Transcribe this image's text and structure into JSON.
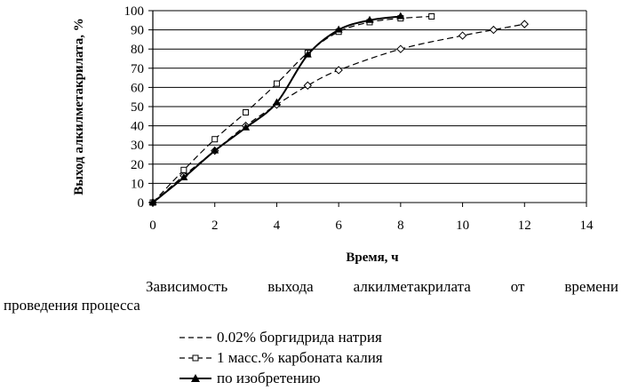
{
  "chart_data": {
    "type": "line",
    "ylabel": "Выход алкилметакрилата, %",
    "xlabel": "Время, ч",
    "xlim": [
      0,
      14
    ],
    "ylim": [
      0,
      100
    ],
    "xticks": [
      "0",
      "2",
      "4",
      "6",
      "8",
      "10",
      "12",
      "14"
    ],
    "yticks": [
      "0",
      "10",
      "20",
      "30",
      "40",
      "50",
      "60",
      "70",
      "80",
      "90",
      "100"
    ],
    "grid": "horizontal",
    "series": [
      {
        "name": "0.02% боргидрида натрия",
        "marker": "diamond",
        "style": "dashed",
        "x": [
          0,
          1,
          2,
          3,
          4,
          5,
          6,
          8,
          10,
          11,
          12
        ],
        "y": [
          0,
          14,
          27,
          40,
          51,
          61,
          69,
          80,
          87,
          90,
          93
        ]
      },
      {
        "name": "1 масс.% карбоната калия",
        "marker": "square",
        "style": "dashed",
        "x": [
          0,
          1,
          2,
          3,
          4,
          5,
          6,
          7,
          8,
          9
        ],
        "y": [
          0,
          17,
          33,
          47,
          62,
          78,
          89,
          94,
          96,
          97
        ]
      },
      {
        "name": "по изобретению",
        "marker": "triangle",
        "style": "solid",
        "x": [
          0,
          1,
          2,
          3,
          4,
          5,
          6,
          7,
          8
        ],
        "y": [
          0,
          13,
          27,
          39,
          52,
          77,
          90,
          95,
          97
        ]
      }
    ]
  },
  "caption": {
    "words": [
      "Зависимость",
      "выхода",
      "алкилметакрилата",
      "от",
      "времени"
    ],
    "line2": "проведения процесса"
  },
  "legend": [
    {
      "label": "0.02% боргидрида натрия"
    },
    {
      "label": "1 масс.% карбоната калия"
    },
    {
      "label": "по изобретению"
    }
  ]
}
